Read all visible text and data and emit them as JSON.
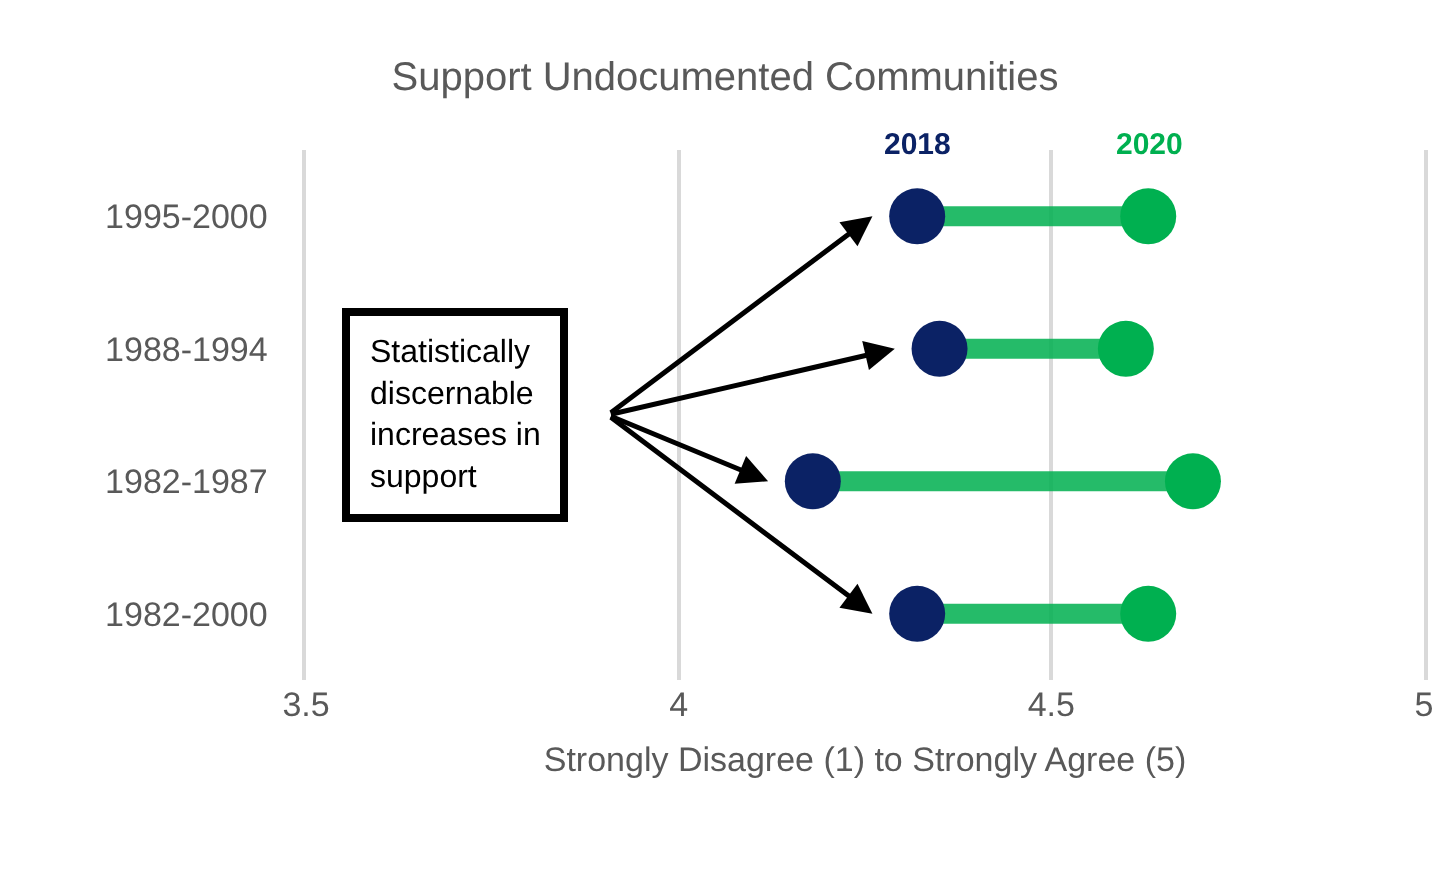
{
  "chart_data": {
    "type": "lollipop",
    "title": "Support Undocumented Communities",
    "xlabel": "Strongly Disagree (1) to Strongly Agree (5)",
    "categories": [
      "1995-2000",
      "1988-1994",
      "1982-1987",
      "1982-2000"
    ],
    "series": [
      {
        "name": "2018",
        "color": "#0b2265",
        "values": [
          4.32,
          4.35,
          4.18,
          4.32
        ]
      },
      {
        "name": "2020",
        "color": "#00b050",
        "values": [
          4.63,
          4.6,
          4.69,
          4.63
        ]
      }
    ],
    "annotations": [
      "Statistically\ndiscernable\nincreases in\nsupport"
    ],
    "orientation": "horizontal",
    "xlim": [
      3.5,
      5
    ],
    "xticks": [
      3.5,
      4,
      4.5,
      5
    ],
    "grid": "x",
    "legend": false,
    "marker": "circle"
  }
}
